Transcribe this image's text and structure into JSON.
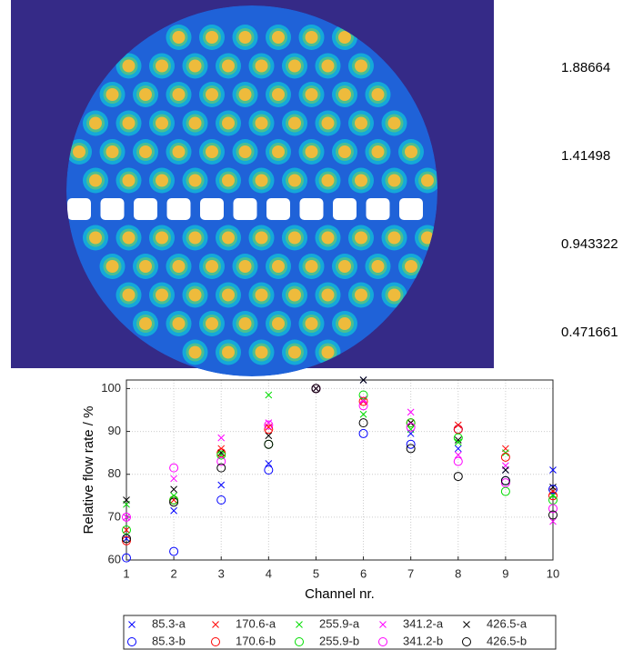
{
  "chart_data": [
    {
      "type": "image",
      "colorbar_ticks": [
        1.88664,
        1.41498,
        0.943322,
        0.471661
      ]
    },
    {
      "type": "scatter",
      "x_label": "Channel nr.",
      "y_label": "Relative flow rate / %",
      "x": [
        1,
        2,
        3,
        4,
        5,
        6,
        7,
        8,
        9,
        10
      ],
      "xlim": [
        1,
        10
      ],
      "xticks": [
        1,
        2,
        3,
        4,
        5,
        6,
        7,
        8,
        9,
        10
      ],
      "ylim": [
        60,
        102
      ],
      "yticks": [
        60,
        70,
        80,
        90,
        100
      ],
      "grid": true,
      "series": [
        {
          "name": "85.3-a",
          "color": "#0000ff",
          "marker": "x",
          "values": [
            65,
            71.5,
            77.5,
            82.5,
            100,
            102,
            89.5,
            86,
            81,
            81
          ]
        },
        {
          "name": "170.6-a",
          "color": "#ff0000",
          "marker": "x",
          "values": [
            67,
            74,
            86,
            91,
            100,
            97,
            92,
            91.5,
            86,
            76
          ]
        },
        {
          "name": "255.9-a",
          "color": "#00dd00",
          "marker": "x",
          "values": [
            73,
            75,
            84.5,
            98.5,
            100,
            94,
            90.5,
            87.5,
            85,
            75
          ]
        },
        {
          "name": "341.2-a",
          "color": "#ff00ff",
          "marker": "x",
          "values": [
            70,
            79,
            88.5,
            92,
            100,
            97.5,
            94.5,
            84.5,
            82,
            69
          ]
        },
        {
          "name": "426.5-a",
          "color": "#000000",
          "marker": "x",
          "values": [
            74,
            76.5,
            85,
            89,
            100,
            102,
            92,
            88,
            81,
            77
          ]
        },
        {
          "name": "85.3-b",
          "color": "#0000ff",
          "marker": "o",
          "values": [
            60.5,
            62,
            74,
            81,
            100,
            89.5,
            87,
            90.5,
            78.5,
            76.5
          ]
        },
        {
          "name": "170.6-b",
          "color": "#ff0000",
          "marker": "o",
          "values": [
            64.5,
            74,
            85,
            90.5,
            100,
            97,
            92,
            90.5,
            84,
            75
          ]
        },
        {
          "name": "255.9-b",
          "color": "#00dd00",
          "marker": "o",
          "values": [
            67,
            74,
            84.5,
            87,
            100,
            98.5,
            92,
            88.5,
            76,
            74
          ]
        },
        {
          "name": "341.2-b",
          "color": "#ff00ff",
          "marker": "o",
          "values": [
            70,
            81.5,
            83,
            91.5,
            100,
            96,
            91,
            83,
            78,
            72
          ]
        },
        {
          "name": "426.5-b",
          "color": "#000000",
          "marker": "o",
          "values": [
            65,
            73.5,
            81.5,
            87,
            100,
            92,
            86,
            79.5,
            78.5,
            70.5
          ]
        }
      ]
    }
  ]
}
